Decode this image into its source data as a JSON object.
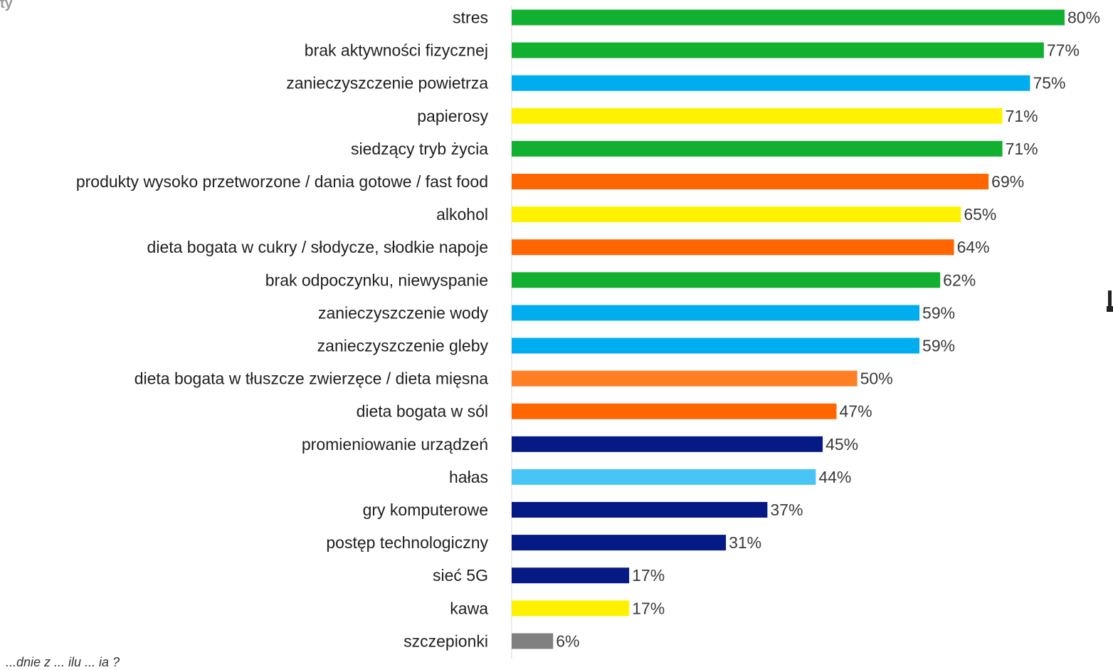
{
  "page": {
    "top_fragment": "ty",
    "bottom_fragment": "...dnie z ... ilu ... ia ?"
  },
  "colors": {
    "lifestyle_green": "#12b031",
    "environment_blue": "#00aeef",
    "stimulants_yellow": "#fff200",
    "diet_orange": "#ff6600",
    "diet_light_orange": "#ff7f24",
    "technology_navy": "#061a85",
    "noise_light_blue": "#48c4f5",
    "vaccines_gray": "#808080"
  },
  "chart_data": {
    "type": "bar",
    "orientation": "horizontal",
    "categories": [
      "stres",
      "brak aktywności fizycznej",
      "zanieczyszczenie powietrza",
      "papierosy",
      "siedzący tryb życia",
      "produkty wysoko przetworzone / dania gotowe / fast food",
      "alkohol",
      "dieta bogata w cukry / słodycze, słodkie napoje",
      "brak odpoczynku, niewyspanie",
      "zanieczyszczenie wody",
      "zanieczyszczenie gleby",
      "dieta bogata w tłuszcze zwierzęce / dieta mięsna",
      "dieta bogata w sól",
      "promieniowanie urządzeń",
      "hałas",
      "gry komputerowe",
      "postęp technologiczny",
      "sieć 5G",
      "kawa",
      "szczepionki"
    ],
    "values": [
      80,
      77,
      75,
      71,
      71,
      69,
      65,
      64,
      62,
      59,
      59,
      50,
      47,
      45,
      44,
      37,
      31,
      17,
      17,
      6
    ],
    "value_labels": [
      "80%",
      "77%",
      "75%",
      "71%",
      "71%",
      "69%",
      "65%",
      "64%",
      "62%",
      "59%",
      "59%",
      "50%",
      "47%",
      "45%",
      "44%",
      "37%",
      "31%",
      "17%",
      "17%",
      "6%"
    ],
    "bar_colors": [
      "#12b031",
      "#12b031",
      "#00aeef",
      "#fff200",
      "#12b031",
      "#ff6600",
      "#fff200",
      "#ff6600",
      "#12b031",
      "#00aeef",
      "#00aeef",
      "#ff7f24",
      "#ff6600",
      "#061a85",
      "#48c4f5",
      "#061a85",
      "#061a85",
      "#061a85",
      "#fff200",
      "#808080"
    ],
    "unit": "%",
    "xlim": [
      0,
      80
    ],
    "grid": false,
    "title": "",
    "xlabel": "",
    "ylabel": ""
  }
}
